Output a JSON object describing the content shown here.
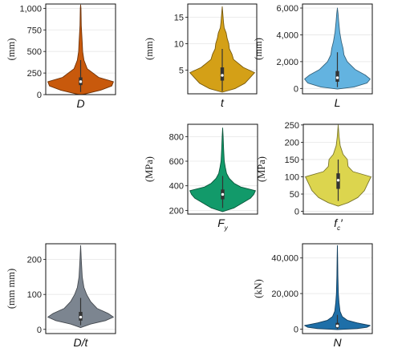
{
  "chart_data": [
    {
      "type": "violin",
      "name": "D",
      "xlabel": "D",
      "ylabel": "(mm)",
      "ylim": [
        0,
        1050
      ],
      "yticks": [
        0,
        250,
        500,
        750,
        1000
      ],
      "yticklabels": [
        "0",
        "250",
        "500",
        "750",
        "1,000"
      ],
      "color": "#c8590c",
      "density": [
        [
          0,
          0.05
        ],
        [
          50,
          0.6
        ],
        [
          100,
          0.95
        ],
        [
          150,
          1.0
        ],
        [
          200,
          0.55
        ],
        [
          300,
          0.2
        ],
        [
          400,
          0.1
        ],
        [
          500,
          0.06
        ],
        [
          600,
          0.05
        ],
        [
          800,
          0.02
        ],
        [
          1000,
          0.01
        ],
        [
          1040,
          0
        ]
      ],
      "box": {
        "q1": 110,
        "median": 150,
        "q3": 200,
        "whisker_low": 30,
        "whisker_high": 400
      }
    },
    {
      "type": "violin",
      "name": "t",
      "xlabel": "t",
      "ylabel": "(mm)",
      "ylim": [
        0.5,
        17.5
      ],
      "yticks": [
        5,
        10,
        15
      ],
      "yticklabels": [
        "5",
        "10",
        "15"
      ],
      "color": "#d4a017",
      "density": [
        [
          0.8,
          0
        ],
        [
          1.5,
          0.4
        ],
        [
          2.5,
          0.7
        ],
        [
          3.5,
          0.85
        ],
        [
          4.5,
          1.0
        ],
        [
          5.5,
          0.65
        ],
        [
          7,
          0.35
        ],
        [
          8,
          0.3
        ],
        [
          9,
          0.22
        ],
        [
          10,
          0.2
        ],
        [
          11,
          0.15
        ],
        [
          12,
          0.12
        ],
        [
          13,
          0.06
        ],
        [
          14,
          0.04
        ],
        [
          15.5,
          0.02
        ],
        [
          17,
          0
        ]
      ],
      "box": {
        "q1": 3,
        "median": 4,
        "q3": 5.5,
        "whisker_low": 1,
        "whisker_high": 9
      }
    },
    {
      "type": "violin",
      "name": "L",
      "xlabel": "L",
      "ylabel": "(mm)",
      "ylim": [
        -400,
        6300
      ],
      "yticks": [
        0,
        2000,
        4000,
        6000
      ],
      "yticklabels": [
        "0",
        "2,000",
        "4,000",
        "6,000"
      ],
      "color": "#63b3e0",
      "density": [
        [
          -50,
          0
        ],
        [
          100,
          0.5
        ],
        [
          400,
          0.9
        ],
        [
          700,
          1.0
        ],
        [
          1000,
          0.85
        ],
        [
          1400,
          0.55
        ],
        [
          2000,
          0.3
        ],
        [
          2500,
          0.2
        ],
        [
          3000,
          0.17
        ],
        [
          3500,
          0.12
        ],
        [
          4200,
          0.07
        ],
        [
          5000,
          0.04
        ],
        [
          5600,
          0.02
        ],
        [
          6000,
          0
        ]
      ],
      "box": {
        "q1": 500,
        "median": 800,
        "q3": 1300,
        "whisker_low": 100,
        "whisker_high": 2700
      }
    },
    {
      "type": "violin",
      "name": "F_y",
      "xlabel": "F",
      "xlabel_sub": "y",
      "ylabel": "(MPa)",
      "ylim": [
        170,
        900
      ],
      "yticks": [
        200,
        400,
        600,
        800
      ],
      "yticklabels": [
        "200",
        "400",
        "600",
        "800"
      ],
      "color": "#129a6a",
      "density": [
        [
          190,
          0
        ],
        [
          220,
          0.35
        ],
        [
          260,
          0.6
        ],
        [
          300,
          0.85
        ],
        [
          330,
          0.95
        ],
        [
          360,
          1.0
        ],
        [
          390,
          0.55
        ],
        [
          420,
          0.35
        ],
        [
          460,
          0.2
        ],
        [
          500,
          0.12
        ],
        [
          550,
          0.08
        ],
        [
          600,
          0.05
        ],
        [
          700,
          0.03
        ],
        [
          800,
          0.015
        ],
        [
          870,
          0
        ]
      ],
      "box": {
        "q1": 290,
        "median": 330,
        "q3": 370,
        "whisker_low": 220,
        "whisker_high": 480
      }
    },
    {
      "type": "violin",
      "name": "fc'",
      "xlabel": "f",
      "xlabel_sub": "c",
      "xlabel_suffix": "′",
      "ylabel": "(MPa)",
      "ylim": [
        -8,
        252
      ],
      "yticks": [
        0,
        50,
        100,
        150,
        200,
        250
      ],
      "yticklabels": [
        "0",
        "50",
        "100",
        "150",
        "200",
        "250"
      ],
      "color": "#dcd54e",
      "density": [
        [
          15,
          0
        ],
        [
          25,
          0.3
        ],
        [
          40,
          0.6
        ],
        [
          60,
          0.8
        ],
        [
          80,
          0.9
        ],
        [
          100,
          1.0
        ],
        [
          115,
          0.45
        ],
        [
          130,
          0.3
        ],
        [
          150,
          0.28
        ],
        [
          165,
          0.15
        ],
        [
          190,
          0.06
        ],
        [
          215,
          0.03
        ],
        [
          250,
          0
        ]
      ],
      "box": {
        "q1": 65,
        "median": 90,
        "q3": 110,
        "whisker_low": 30,
        "whisker_high": 150
      }
    },
    {
      "type": "violin",
      "name": "D/t",
      "xlabel": "D/t",
      "ylabel": "(mm mm)",
      "ylim": [
        -12,
        245
      ],
      "yticks": [
        0,
        100,
        200
      ],
      "yticklabels": [
        "0",
        "100",
        "200"
      ],
      "color": "#7c8590",
      "density": [
        [
          5,
          0
        ],
        [
          15,
          0.3
        ],
        [
          25,
          0.75
        ],
        [
          35,
          1.0
        ],
        [
          45,
          0.85
        ],
        [
          60,
          0.5
        ],
        [
          80,
          0.3
        ],
        [
          100,
          0.18
        ],
        [
          120,
          0.1
        ],
        [
          150,
          0.05
        ],
        [
          200,
          0.02
        ],
        [
          240,
          0
        ]
      ],
      "box": {
        "q1": 25,
        "median": 35,
        "q3": 50,
        "whisker_low": 12,
        "whisker_high": 90
      }
    },
    {
      "type": "violin",
      "name": "N",
      "xlabel": "N",
      "ylabel": "(kN)",
      "ylim": [
        -2500,
        48000
      ],
      "yticks": [
        0,
        20000,
        40000
      ],
      "yticklabels": [
        "0",
        "20,000",
        "40,000"
      ],
      "color": "#1e6fa8",
      "density": [
        [
          -300,
          0
        ],
        [
          300,
          0.6
        ],
        [
          1000,
          0.9
        ],
        [
          2000,
          1.0
        ],
        [
          3500,
          0.6
        ],
        [
          5000,
          0.3
        ],
        [
          7000,
          0.15
        ],
        [
          10000,
          0.08
        ],
        [
          15000,
          0.05
        ],
        [
          20000,
          0.03
        ],
        [
          30000,
          0.015
        ],
        [
          40000,
          0.008
        ],
        [
          47000,
          0
        ]
      ],
      "box": {
        "q1": 800,
        "median": 1800,
        "q3": 3500,
        "whisker_low": 100,
        "whisker_high": 8000
      }
    }
  ]
}
